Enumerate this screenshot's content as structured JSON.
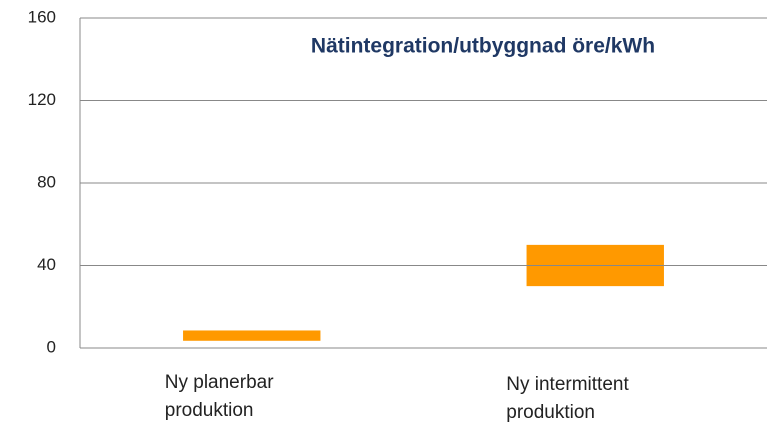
{
  "chart_data": {
    "type": "range_bar",
    "title": "Nätintegration/utbyggnad öre/kWh",
    "categories": [
      [
        "Ny planerbar",
        "produktion"
      ],
      [
        "Ny intermittent",
        "produktion"
      ]
    ],
    "low": [
      3.5,
      30
    ],
    "high": [
      8.5,
      50
    ],
    "color": "#ff9900",
    "ylim": [
      0,
      160
    ],
    "yticks": [
      0,
      40,
      80,
      120,
      160
    ],
    "grid": true
  }
}
